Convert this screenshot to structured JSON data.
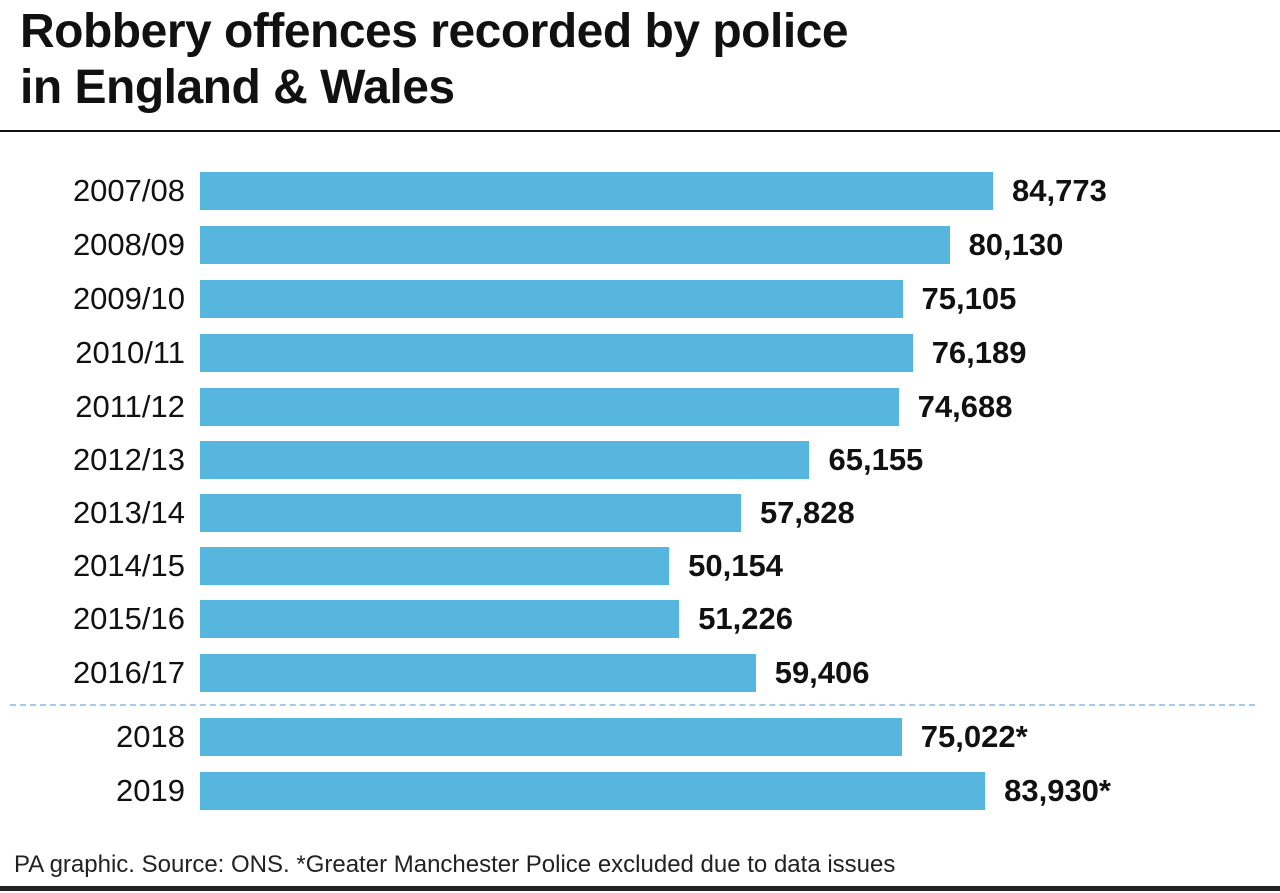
{
  "chart_data": {
    "type": "bar",
    "orientation": "horizontal",
    "title": "Robbery offences recorded by police in England & Wales",
    "title_lines": [
      "Robbery offences recorded by police",
      "in England & Wales"
    ],
    "categories": [
      "2007/08",
      "2008/09",
      "2009/10",
      "2010/11",
      "2011/12",
      "2012/13",
      "2013/14",
      "2014/15",
      "2015/16",
      "2016/17",
      "2018",
      "2019"
    ],
    "values": [
      84773,
      80130,
      75105,
      76189,
      74688,
      65155,
      57828,
      50154,
      51226,
      59406,
      75022,
      83930
    ],
    "data_labels": [
      "84,773",
      "80,130",
      "75,105",
      "76,189",
      "74,688",
      "65,155",
      "57,828",
      "50,154",
      "51,226",
      "59,406",
      "75,022*",
      "83,930*"
    ],
    "xlim": [
      0,
      100000
    ],
    "grid": false,
    "divider_after_category": "2016/17",
    "bar_color": "#56b6dd",
    "divider_color": "#a9c8e6",
    "footnote": "PA graphic. Source:  ONS. *Greater Manchester Police excluded due to data issues"
  }
}
